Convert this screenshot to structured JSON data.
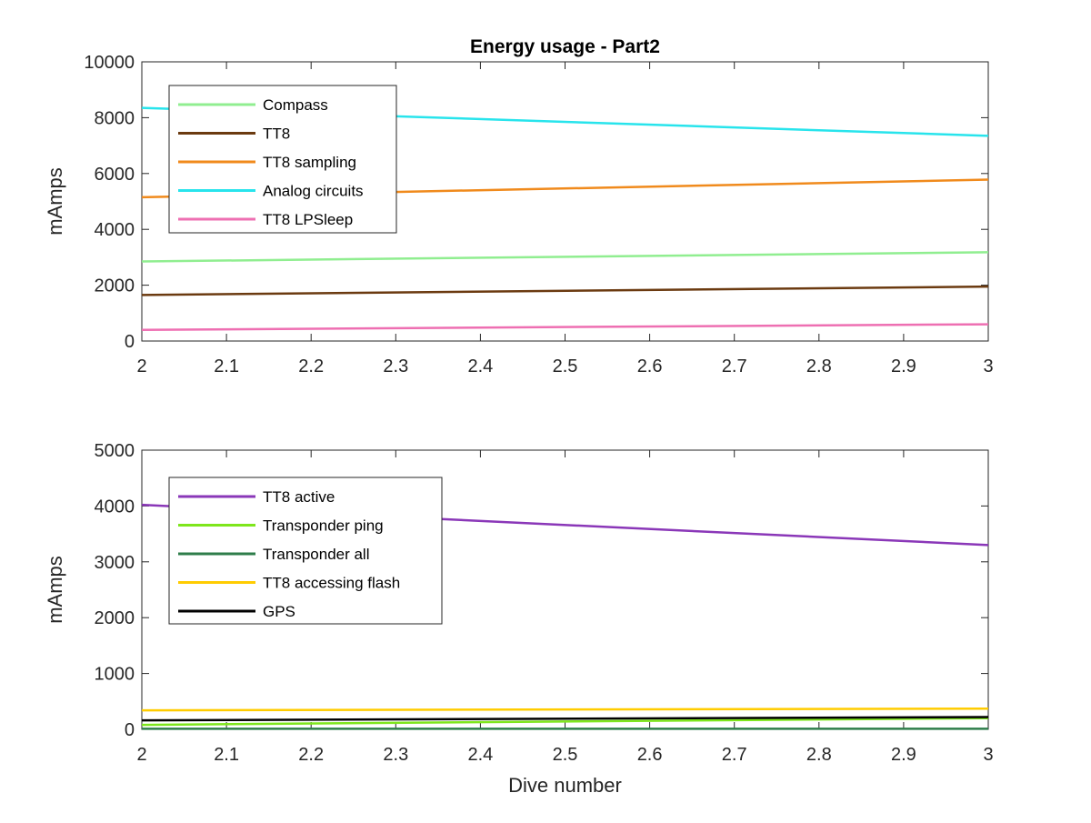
{
  "chart_data": [
    {
      "type": "line",
      "title": "Energy usage - Part2",
      "xlabel": "",
      "ylabel": "mAmps",
      "xlim": [
        2,
        3
      ],
      "ylim": [
        0,
        10000
      ],
      "x_ticks": [
        "2",
        "2.1",
        "2.2",
        "2.3",
        "2.4",
        "2.5",
        "2.6",
        "2.7",
        "2.8",
        "2.9",
        "3"
      ],
      "y_ticks": [
        "0",
        "2000",
        "4000",
        "6000",
        "8000",
        "10000"
      ],
      "legend_position": "top-left",
      "grid": false,
      "x": [
        2,
        3
      ],
      "series": [
        {
          "name": "Compass",
          "color": "#90ee90",
          "values": [
            2850,
            3180
          ]
        },
        {
          "name": "TT8",
          "color": "#6b3a10",
          "values": [
            1650,
            1950
          ]
        },
        {
          "name": "TT8 sampling",
          "color": "#f08a1c",
          "values": [
            5150,
            5780
          ]
        },
        {
          "name": "Analog circuits",
          "color": "#28e4ec",
          "values": [
            8350,
            7350
          ]
        },
        {
          "name": "TT8 LPSleep",
          "color": "#ee6fb2",
          "values": [
            400,
            600
          ]
        }
      ]
    },
    {
      "type": "line",
      "title": "",
      "xlabel": "Dive number",
      "ylabel": "mAmps",
      "xlim": [
        2,
        3
      ],
      "ylim": [
        0,
        5000
      ],
      "x_ticks": [
        "2",
        "2.1",
        "2.2",
        "2.3",
        "2.4",
        "2.5",
        "2.6",
        "2.7",
        "2.8",
        "2.9",
        "3"
      ],
      "y_ticks": [
        "0",
        "1000",
        "2000",
        "3000",
        "4000",
        "5000"
      ],
      "legend_position": "top-left",
      "grid": false,
      "x": [
        2,
        3
      ],
      "series": [
        {
          "name": "TT8 active",
          "color": "#8a37b8",
          "values": [
            4020,
            3300
          ]
        },
        {
          "name": "Transponder ping",
          "color": "#7ee61c",
          "values": [
            80,
            200
          ]
        },
        {
          "name": "Transponder all",
          "color": "#2e7d4a",
          "values": [
            10,
            10
          ]
        },
        {
          "name": "TT8 accessing flash",
          "color": "#ffcc00",
          "values": [
            340,
            370
          ]
        },
        {
          "name": "GPS",
          "color": "#000000",
          "values": [
            160,
            220
          ]
        }
      ]
    }
  ]
}
